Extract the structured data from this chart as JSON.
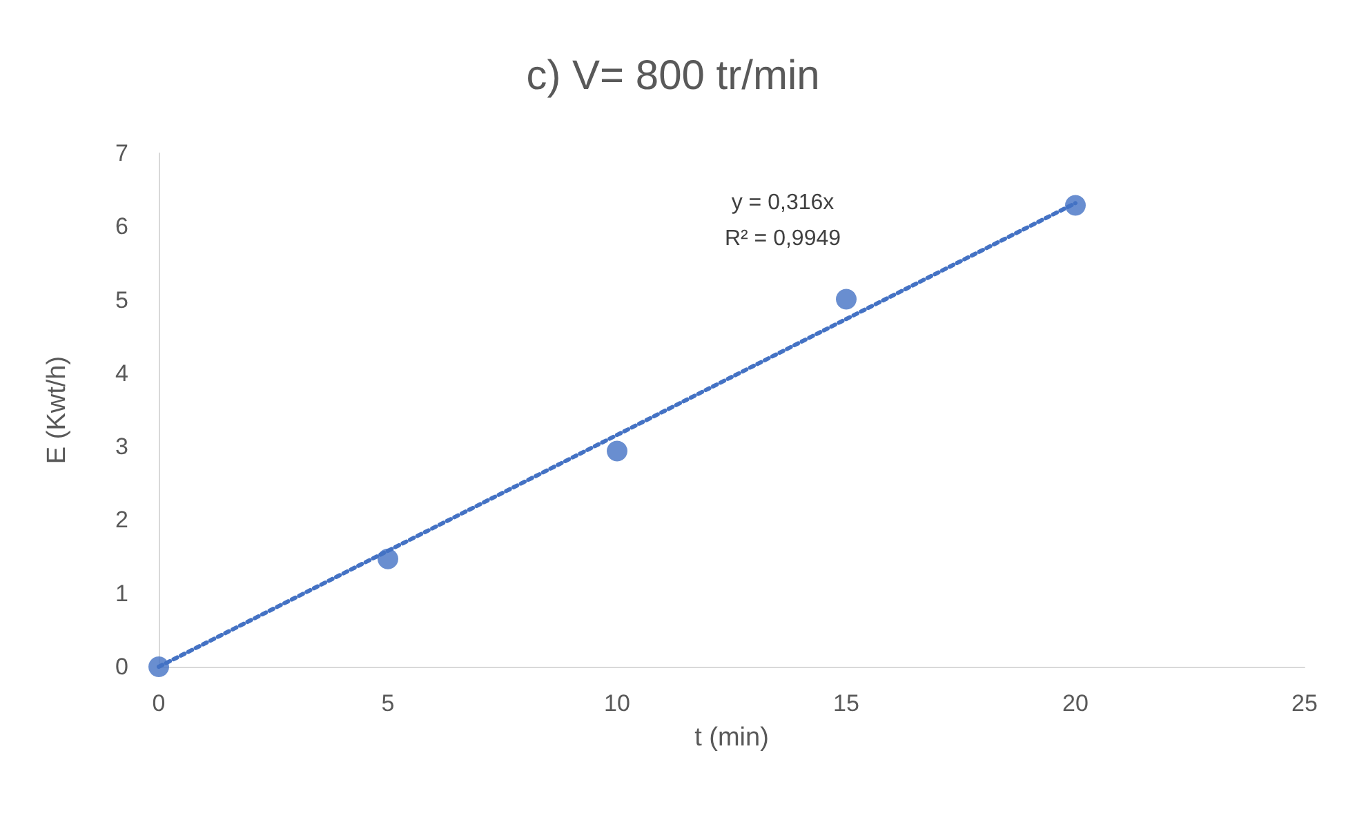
{
  "chart_data": {
    "type": "scatter",
    "title": "c) V= 800 tr/min",
    "xlabel": "t (min)",
    "ylabel": "E (Kwt/h)",
    "series": [
      {
        "type": "scatter",
        "color": "#4472c4",
        "x": [
          0,
          5,
          10,
          15,
          20
        ],
        "values": [
          0,
          1.47,
          2.94,
          5.01,
          6.29
        ],
        "marker": "circle"
      },
      {
        "type": "line",
        "color": "#4472c4",
        "x": [
          0,
          20
        ],
        "values": [
          0,
          6.32
        ],
        "marker": "none",
        "line_style": "dotted"
      }
    ],
    "xlim": [
      0,
      25
    ],
    "xticks": [
      0,
      5,
      10,
      15,
      20,
      25
    ],
    "ylim": [
      0,
      7
    ],
    "yticks": [
      0,
      1,
      2,
      3,
      4,
      5,
      6,
      7
    ],
    "grid": false,
    "annotations": [
      "y = 0,316x\nR² = 0,9949"
    ]
  }
}
